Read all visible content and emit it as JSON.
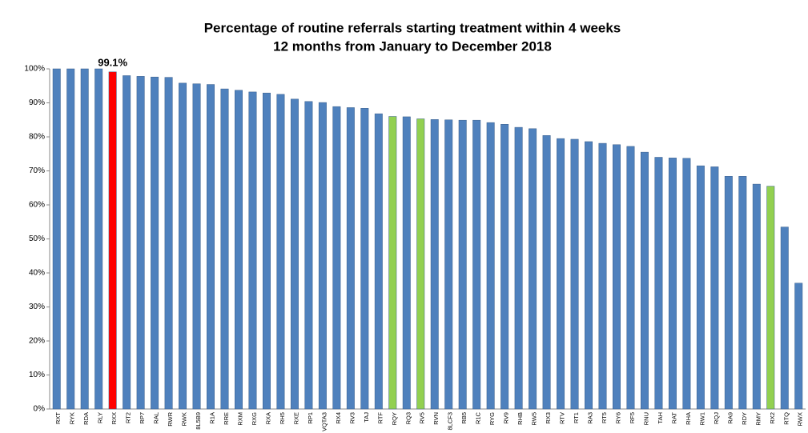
{
  "chart_data": {
    "type": "bar",
    "title": [
      "Percentage of routine referrals starting treatment within 4 weeks",
      "12 months from January to December 2018"
    ],
    "categories": [
      "RXT",
      "RYK",
      "RDA",
      "RLY",
      "RXX",
      "RT2",
      "RP7",
      "RAL",
      "RWR",
      "RWK",
      "8L5B9",
      "R1A",
      "RRE",
      "RXM",
      "RXG",
      "RXA",
      "RH5",
      "RXE",
      "RP1",
      "VQTA3",
      "RX4",
      "RV3",
      "TAJ",
      "RTF",
      "RQY",
      "RQ3",
      "RV5",
      "RVN",
      "8LCF3",
      "RB5",
      "R1C",
      "RYG",
      "RV9",
      "RHB",
      "RW5",
      "RX3",
      "RTV",
      "RT1",
      "RA3",
      "RT5",
      "RY6",
      "RF5",
      "RNU",
      "TAH",
      "RAT",
      "RHA",
      "RW1",
      "RQJ",
      "RA9",
      "RDY",
      "RMY",
      "RX2",
      "RTQ",
      "RWX"
    ],
    "values": [
      100,
      100,
      100,
      100,
      99.1,
      98,
      97.8,
      97.6,
      97.5,
      95.8,
      95.6,
      95.4,
      94.1,
      93.7,
      93.2,
      92.9,
      92.5,
      91.1,
      90.4,
      90.1,
      88.9,
      88.6,
      88.4,
      86.8,
      86,
      85.9,
      85.3,
      85.1,
      85,
      84.9,
      84.9,
      84.2,
      83.7,
      82.8,
      82.4,
      80.4,
      79.5,
      79.3,
      78.6,
      78.1,
      77.7,
      77.2,
      75.5,
      74,
      73.8,
      73.7,
      71.5,
      71.2,
      68.4,
      68.4,
      66.1,
      65.5,
      53.5,
      37
    ],
    "value_labels": [
      null,
      null,
      null,
      null,
      "99.1%",
      null,
      null,
      null,
      null,
      null,
      null,
      null,
      null,
      null,
      null,
      null,
      null,
      null,
      null,
      null,
      null,
      null,
      null,
      null,
      null,
      null,
      null,
      null,
      null,
      null,
      null,
      null,
      null,
      null,
      null,
      null,
      null,
      null,
      null,
      null,
      null,
      null,
      null,
      null,
      null,
      null,
      null,
      null,
      null,
      null,
      null,
      null,
      null,
      null
    ],
    "colors": [
      "#4f81bd",
      "#4f81bd",
      "#4f81bd",
      "#4f81bd",
      "#ff0000",
      "#4f81bd",
      "#4f81bd",
      "#4f81bd",
      "#4f81bd",
      "#4f81bd",
      "#4f81bd",
      "#4f81bd",
      "#4f81bd",
      "#4f81bd",
      "#4f81bd",
      "#4f81bd",
      "#4f81bd",
      "#4f81bd",
      "#4f81bd",
      "#4f81bd",
      "#4f81bd",
      "#4f81bd",
      "#4f81bd",
      "#4f81bd",
      "#92d050",
      "#4f81bd",
      "#92d050",
      "#4f81bd",
      "#4f81bd",
      "#4f81bd",
      "#4f81bd",
      "#4f81bd",
      "#4f81bd",
      "#4f81bd",
      "#4f81bd",
      "#4f81bd",
      "#4f81bd",
      "#4f81bd",
      "#4f81bd",
      "#4f81bd",
      "#4f81bd",
      "#4f81bd",
      "#4f81bd",
      "#4f81bd",
      "#4f81bd",
      "#4f81bd",
      "#4f81bd",
      "#4f81bd",
      "#4f81bd",
      "#4f81bd",
      "#4f81bd",
      "#92d050",
      "#4f81bd",
      "#4f81bd"
    ],
    "ylim": [
      0,
      100
    ],
    "yticks": [
      {
        "value": 0,
        "label": "0%"
      },
      {
        "value": 10,
        "label": "10%"
      },
      {
        "value": 20,
        "label": "20%"
      },
      {
        "value": 30,
        "label": "30%"
      },
      {
        "value": 40,
        "label": "40%"
      },
      {
        "value": 50,
        "label": "50%"
      },
      {
        "value": 60,
        "label": "60%"
      },
      {
        "value": 70,
        "label": "70%"
      },
      {
        "value": 80,
        "label": "80%"
      },
      {
        "value": 90,
        "label": "90%"
      },
      {
        "value": 100,
        "label": "100%"
      }
    ],
    "grid": false
  }
}
